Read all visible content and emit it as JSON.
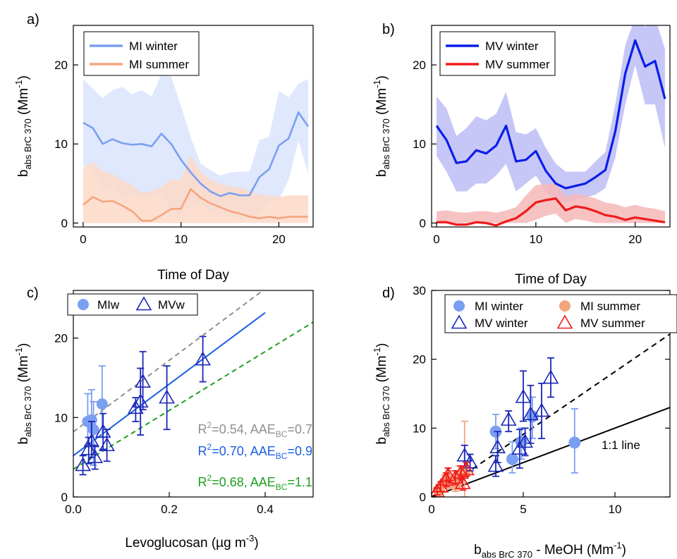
{
  "chart_data": [
    {
      "panel": "a)",
      "type": "area",
      "xlabel": "Time of Day",
      "ylabel_main": "b",
      "ylabel_sub": "abs BrC 370",
      "ylabel_unit": "(Mm",
      "ylabel_exp": "-1",
      "ylabel_close": ")",
      "xlim": [
        -1,
        23.5
      ],
      "ylim": [
        -0.5,
        25
      ],
      "xticks": [
        0,
        10,
        20
      ],
      "yticks": [
        0,
        10,
        20
      ],
      "legend": "top-left",
      "x": [
        0,
        1,
        2,
        3,
        4,
        5,
        6,
        7,
        8,
        9,
        10,
        11,
        12,
        13,
        14,
        15,
        16,
        17,
        18,
        19,
        20,
        21,
        22,
        23
      ],
      "series": [
        {
          "name": "MI winter",
          "color": "#7b9ff0",
          "band_color": "#d9e4fb",
          "values": [
            12.7,
            12.0,
            10.0,
            10.6,
            10.1,
            9.9,
            10.0,
            9.7,
            11.3,
            10.0,
            8.0,
            6.4,
            5.0,
            4.0,
            3.4,
            3.8,
            3.5,
            3.5,
            5.8,
            6.8,
            9.8,
            10.7,
            14.0,
            12.2
          ],
          "upper": [
            18.2,
            17.0,
            15.8,
            16.8,
            17.2,
            16.3,
            16.8,
            16.0,
            18.8,
            18.5,
            14.8,
            10.8,
            7.5,
            6.7,
            6.0,
            6.4,
            6.5,
            6.5,
            10.5,
            10.9,
            16.7,
            15.9,
            17.6,
            18.2
          ],
          "lower": [
            7.2,
            7.0,
            4.2,
            4.5,
            3.0,
            3.5,
            3.2,
            3.4,
            3.8,
            1.5,
            1.2,
            2.0,
            2.5,
            1.3,
            1.0,
            1.2,
            0.5,
            0.5,
            1.1,
            2.7,
            2.9,
            5.5,
            10.4,
            6.2
          ]
        },
        {
          "name": "MI summer",
          "color": "#f5a57e",
          "band_color": "#fdd9c8",
          "values": [
            2.3,
            3.3,
            2.7,
            2.8,
            2.2,
            1.5,
            0.3,
            0.3,
            1.0,
            1.8,
            1.8,
            4.3,
            3.2,
            2.5,
            2.0,
            1.5,
            1.2,
            0.8,
            0.6,
            0.8,
            0.6,
            0.8,
            0.8,
            0.8
          ],
          "upper": [
            7.0,
            7.7,
            6.5,
            6.2,
            5.4,
            4.8,
            3.8,
            4.0,
            4.6,
            5.5,
            5.5,
            8.5,
            6.5,
            5.5,
            5.0,
            4.6,
            4.5,
            4.0,
            3.6,
            3.5,
            3.3,
            3.5,
            3.5,
            3.5
          ],
          "lower": [
            0,
            0,
            0,
            0,
            0,
            0,
            0,
            0,
            0,
            0,
            0,
            0,
            0,
            0,
            0,
            0,
            0,
            0,
            0,
            0,
            0,
            0,
            0,
            0
          ]
        }
      ]
    },
    {
      "panel": "b)",
      "type": "area",
      "xlabel": "Time of Day",
      "ylabel_main": "b",
      "ylabel_sub": "abs BrC 370",
      "ylabel_unit": "(Mm",
      "ylabel_exp": "-1",
      "ylabel_close": ")",
      "xlim": [
        -0.5,
        23.5
      ],
      "ylim": [
        -0.5,
        25
      ],
      "xticks": [
        0,
        10,
        20
      ],
      "yticks": [
        0,
        10,
        20
      ],
      "legend": "top-left",
      "x": [
        0,
        1,
        2,
        3,
        4,
        5,
        6,
        7,
        8,
        9,
        10,
        11,
        12,
        13,
        14,
        15,
        16,
        17,
        18,
        19,
        20,
        21,
        22,
        23
      ],
      "series": [
        {
          "name": "MV winter",
          "color": "#0a1ee8",
          "band_color": "#bcbdf5",
          "values": [
            12.3,
            10.5,
            7.6,
            7.8,
            9.2,
            8.8,
            9.8,
            12.3,
            7.8,
            8.0,
            9.1,
            6.6,
            5.0,
            4.4,
            4.7,
            5.0,
            5.8,
            6.7,
            11.6,
            18.9,
            23.1,
            19.8,
            20.5,
            15.7
          ],
          "upper": [
            16.0,
            14.5,
            11.0,
            12.0,
            13.5,
            13.0,
            13.8,
            16.6,
            11.5,
            11.2,
            12.0,
            9.5,
            7.5,
            6.5,
            6.5,
            6.5,
            7.8,
            9.0,
            15.0,
            22.5,
            26.0,
            24.8,
            26.0,
            22.0
          ],
          "lower": [
            8.5,
            6.5,
            4.0,
            4.0,
            5.0,
            5.0,
            6.0,
            7.5,
            4.0,
            5.0,
            6.0,
            4.0,
            2.8,
            2.6,
            3.0,
            3.2,
            3.6,
            4.4,
            8.3,
            15.0,
            20.0,
            15.0,
            15.0,
            9.5
          ]
        },
        {
          "name": "MV summer",
          "color": "#ef1a1a",
          "band_color": "#f6b7b7",
          "values": [
            0.1,
            0.1,
            -0.2,
            -0.2,
            0.1,
            0.0,
            -0.3,
            0.2,
            0.6,
            1.5,
            2.6,
            2.9,
            3.1,
            1.6,
            2.1,
            1.9,
            1.5,
            1.0,
            0.8,
            0.4,
            0.7,
            0.5,
            0.3,
            0.1
          ],
          "upper": [
            1.5,
            1.6,
            1.4,
            1.3,
            1.5,
            1.5,
            1.3,
            1.6,
            2.0,
            3.5,
            4.8,
            4.9,
            5.0,
            3.4,
            3.7,
            3.5,
            3.1,
            2.6,
            2.4,
            2.0,
            2.3,
            2.0,
            1.8,
            1.5
          ],
          "lower": [
            0,
            0,
            0,
            0,
            0,
            0,
            0,
            0,
            0,
            0,
            0.4,
            0.9,
            1.2,
            0,
            0.5,
            0.3,
            0,
            0,
            0,
            0,
            0,
            0,
            0,
            0
          ]
        }
      ]
    },
    {
      "panel": "c)",
      "type": "scatter",
      "xlabel": "Levoglucosan (µg m",
      "xlabel_exp": "-3",
      "xlabel_close": ")",
      "ylabel_main": "b",
      "ylabel_sub": "abs BrC 370",
      "ylabel_unit": "(Mm",
      "ylabel_exp": "-1",
      "ylabel_close": ")",
      "xlim": [
        0,
        0.5
      ],
      "ylim": [
        0,
        26
      ],
      "xticks": [
        0.0,
        0.2,
        0.4
      ],
      "xtick_labels": [
        "0.0",
        "0.2",
        "0.4"
      ],
      "yticks": [
        0,
        10,
        20
      ],
      "legend": "top",
      "series": [
        {
          "name": "MIw",
          "marker": "circle",
          "color": "#7b9ff0",
          "points": [
            {
              "x": 0.03,
              "y": 9.5,
              "lo": 6.5,
              "hi": 13.0
            },
            {
              "x": 0.038,
              "y": 9.7,
              "lo": 6.7,
              "hi": 13.5
            },
            {
              "x": 0.042,
              "y": 8.5,
              "lo": 4.0,
              "hi": 12.0
            },
            {
              "x": 0.06,
              "y": 11.7,
              "lo": 7.5,
              "hi": 16.5
            }
          ]
        },
        {
          "name": "MVw",
          "marker": "triangle",
          "color": "#1a27b8",
          "points": [
            {
              "x": 0.02,
              "y": 4.0,
              "lo": 2.8,
              "hi": 5.2
            },
            {
              "x": 0.032,
              "y": 6.0,
              "lo": 4.2,
              "hi": 7.5
            },
            {
              "x": 0.038,
              "y": 7.0,
              "lo": 5.0,
              "hi": 9.5
            },
            {
              "x": 0.045,
              "y": 5.0,
              "lo": 3.5,
              "hi": 6.5
            },
            {
              "x": 0.062,
              "y": 8.2,
              "lo": 6.0,
              "hi": 10.5
            },
            {
              "x": 0.07,
              "y": 6.5,
              "lo": 4.5,
              "hi": 8.5
            },
            {
              "x": 0.13,
              "y": 11.2,
              "lo": 9.5,
              "hi": 12.5
            },
            {
              "x": 0.14,
              "y": 12.0,
              "lo": 7.8,
              "hi": 16.2
            },
            {
              "x": 0.145,
              "y": 14.5,
              "lo": 11.0,
              "hi": 18.3
            },
            {
              "x": 0.195,
              "y": 12.5,
              "lo": 8.5,
              "hi": 16.5
            },
            {
              "x": 0.27,
              "y": 17.3,
              "lo": 14.5,
              "hi": 20.2
            }
          ]
        }
      ],
      "fits": [
        {
          "label_r2": "=0.54, AAE",
          "label_sub": "BC",
          "label_val": "=0.7",
          "color": "#909090",
          "dash": true,
          "intercept": 8.2,
          "slope": 45.0,
          "x_end": 0.5
        },
        {
          "label_r2": "=0.70, AAE",
          "label_sub": "BC",
          "label_val": "=0.9",
          "color": "#1a5fe0",
          "dash": false,
          "intercept": 5.2,
          "slope": 45.0,
          "x_end": 0.4
        },
        {
          "label_r2": "=0.68, AAE",
          "label_sub": "BC",
          "label_val": "=1.1",
          "color": "#1f9e1f",
          "dash": true,
          "intercept": 3.5,
          "slope": 37.0,
          "x_end": 0.5
        }
      ],
      "r_label": "R",
      "r_exp": "2"
    },
    {
      "panel": "d)",
      "type": "scatter",
      "xlabel_main": "b",
      "xlabel_sub": "abs BrC 370",
      "xlabel_rest": " - MeOH (Mm",
      "xlabel_exp": "-1",
      "xlabel_close": ")",
      "ylabel_main": "b",
      "ylabel_sub": "abs BrC 370",
      "ylabel_unit": "(Mm",
      "ylabel_exp": "-1",
      "ylabel_close": ")",
      "xlim": [
        0,
        13
      ],
      "ylim": [
        0,
        30
      ],
      "xticks": [
        0,
        5,
        10
      ],
      "yticks": [
        0,
        10,
        20,
        30
      ],
      "legend": "top",
      "line_label": "1:1 line",
      "series": [
        {
          "name": "MI winter",
          "marker": "circle",
          "color": "#7b9ff0",
          "points": [
            {
              "x": 3.5,
              "y": 9.5,
              "lo": 7.0,
              "hi": 12.0
            },
            {
              "x": 4.4,
              "y": 5.5,
              "lo": 3.5,
              "hi": 8.0
            },
            {
              "x": 4.9,
              "y": 8.0,
              "lo": 5.5,
              "hi": 10.0
            },
            {
              "x": 5.5,
              "y": 11.7,
              "lo": 8.5,
              "hi": 14.5
            },
            {
              "x": 7.8,
              "y": 7.9,
              "lo": 3.5,
              "hi": 12.8
            }
          ]
        },
        {
          "name": "MI summer",
          "marker": "circle",
          "color": "#f5a57e",
          "points": [
            {
              "x": 0.4,
              "y": 1.0,
              "lo": 0.3,
              "hi": 1.8
            },
            {
              "x": 0.7,
              "y": 2.0,
              "lo": 0.8,
              "hi": 3.2
            },
            {
              "x": 1.0,
              "y": 2.5,
              "lo": 1.2,
              "hi": 3.8
            },
            {
              "x": 1.5,
              "y": 3.0,
              "lo": 1.5,
              "hi": 4.5
            },
            {
              "x": 1.8,
              "y": 3.5,
              "lo": 0.0,
              "hi": 11.0
            },
            {
              "x": 1.3,
              "y": 1.8,
              "lo": 0.8,
              "hi": 2.8
            }
          ]
        },
        {
          "name": "MV winter",
          "marker": "triangle",
          "color": "#1a27b8",
          "points": [
            {
              "x": 1.8,
              "y": 6.0,
              "lo": 4.5,
              "hi": 7.5
            },
            {
              "x": 3.5,
              "y": 4.5,
              "lo": 3.0,
              "hi": 6.0
            },
            {
              "x": 3.6,
              "y": 7.2,
              "lo": 5.0,
              "hi": 9.5
            },
            {
              "x": 4.2,
              "y": 11.2,
              "lo": 9.5,
              "hi": 12.5
            },
            {
              "x": 4.8,
              "y": 7.0,
              "lo": 4.2,
              "hi": 9.8
            },
            {
              "x": 5.0,
              "y": 14.5,
              "lo": 11.0,
              "hi": 18.3
            },
            {
              "x": 5.1,
              "y": 8.0,
              "lo": 6.0,
              "hi": 10.0
            },
            {
              "x": 5.4,
              "y": 12.0,
              "lo": 7.8,
              "hi": 16.2
            },
            {
              "x": 6.0,
              "y": 12.5,
              "lo": 8.5,
              "hi": 16.5
            },
            {
              "x": 6.5,
              "y": 17.3,
              "lo": 14.5,
              "hi": 20.2
            },
            {
              "x": 2.1,
              "y": 5.0,
              "lo": 3.8,
              "hi": 6.2
            }
          ]
        },
        {
          "name": "MV summer",
          "marker": "triangle",
          "color": "#ef1a1a",
          "points": [
            {
              "x": 0.3,
              "y": 0.8,
              "lo": 0.3,
              "hi": 1.3
            },
            {
              "x": 0.5,
              "y": 1.5,
              "lo": 0.8,
              "hi": 2.2
            },
            {
              "x": 0.8,
              "y": 2.5,
              "lo": 1.5,
              "hi": 3.5
            },
            {
              "x": 0.9,
              "y": 3.2,
              "lo": 2.2,
              "hi": 4.2
            },
            {
              "x": 1.3,
              "y": 2.8,
              "lo": 1.8,
              "hi": 3.8
            },
            {
              "x": 1.6,
              "y": 3.5,
              "lo": 2.5,
              "hi": 4.5
            },
            {
              "x": 1.7,
              "y": 2.0,
              "lo": 1.0,
              "hi": 3.0
            },
            {
              "x": 1.9,
              "y": 4.0,
              "lo": 3.0,
              "hi": 5.0
            }
          ]
        }
      ],
      "lines": [
        {
          "kind": "one_to_one",
          "color": "#000000",
          "dash": false,
          "slope": 1.0,
          "intercept": 0.0
        },
        {
          "kind": "fit",
          "color": "#000000",
          "dash": true,
          "slope": 1.82,
          "intercept": 0.0
        }
      ]
    }
  ]
}
